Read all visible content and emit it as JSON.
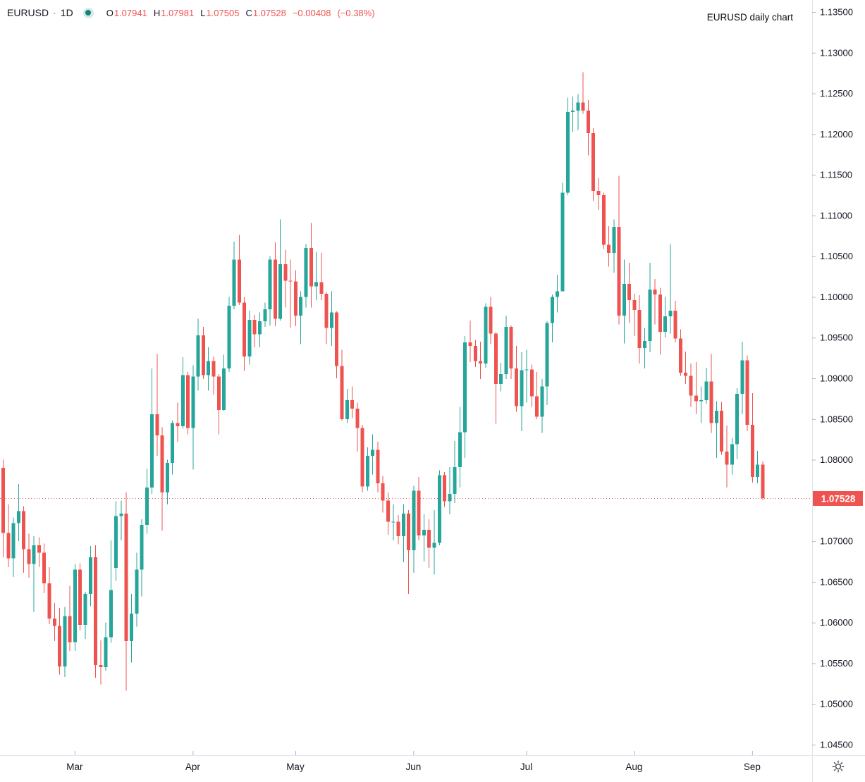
{
  "header": {
    "symbol": "EURUSD",
    "separator": "·",
    "interval": "1D",
    "status_dot_color": "#11847a",
    "ohlc": {
      "open_label": "O",
      "open": "1.07941",
      "high_label": "H",
      "high": "1.07981",
      "low_label": "L",
      "low": "1.07505",
      "close_label": "C",
      "close": "1.07528",
      "change": "−0.00408",
      "change_percent": "(−0.38%)"
    }
  },
  "chart_label": "EURUSD daily chart",
  "price_axis": {
    "labels": [
      "1.13500",
      "1.13000",
      "1.12500",
      "1.12000",
      "1.11500",
      "1.11000",
      "1.10500",
      "1.10000",
      "1.09500",
      "1.09000",
      "1.08500",
      "1.08000",
      "1.07000",
      "1.06500",
      "1.06000",
      "1.05500",
      "1.05000",
      "1.04500"
    ],
    "last_price_badge": {
      "text": "1.07528",
      "background": "#ef5350",
      "text_color": "#ffffff"
    }
  },
  "time_axis": {
    "labels": [
      "Mar",
      "Apr",
      "May",
      "Jun",
      "Jul",
      "Aug",
      "Sep"
    ]
  },
  "colors": {
    "up": "#26a69a",
    "down": "#ef5350",
    "axis_line": "#e0e3eb",
    "tick": "#b2b5be",
    "axis_text": "#131722",
    "icon": "#4a4e59"
  },
  "chart_data": {
    "type": "candlestick",
    "title": "EURUSD daily chart",
    "symbol": "EURUSD",
    "interval": "1D",
    "up_color": "#26a69a",
    "down_color": "#ef5350",
    "last_price": 1.07528,
    "last_price_line_color": "#ef5350",
    "y_axis": {
      "side": "right",
      "min": 1.045,
      "max": 1.135,
      "tick_step": 0.005
    },
    "x_axis": {
      "month_ticks": [
        {
          "label": "Mar",
          "candle_index": 14
        },
        {
          "label": "Apr",
          "candle_index": 37
        },
        {
          "label": "May",
          "candle_index": 57
        },
        {
          "label": "Jun",
          "candle_index": 80
        },
        {
          "label": "Jul",
          "candle_index": 102
        },
        {
          "label": "Aug",
          "candle_index": 123
        },
        {
          "label": "Sep",
          "candle_index": 146
        }
      ]
    },
    "candles": [
      [
        1.079,
        1.08,
        1.068,
        1.071
      ],
      [
        1.071,
        1.0745,
        1.0668,
        1.0679
      ],
      [
        1.0679,
        1.0729,
        1.0656,
        1.0722
      ],
      [
        1.0722,
        1.077,
        1.07,
        1.0737
      ],
      [
        1.0737,
        1.0743,
        1.0661,
        1.069
      ],
      [
        1.069,
        1.0709,
        1.0655,
        1.0672
      ],
      [
        1.0672,
        1.0706,
        1.0613,
        1.0695
      ],
      [
        1.0695,
        1.0705,
        1.0668,
        1.0686
      ],
      [
        1.0686,
        1.0697,
        1.0636,
        1.0648
      ],
      [
        1.0648,
        1.0668,
        1.0598,
        1.0605
      ],
      [
        1.0605,
        1.0624,
        1.0577,
        1.0596
      ],
      [
        1.0596,
        1.0618,
        1.0536,
        1.0546
      ],
      [
        1.0546,
        1.0619,
        1.0533,
        1.0608
      ],
      [
        1.0608,
        1.0645,
        1.0565,
        1.0576
      ],
      [
        1.0576,
        1.0672,
        1.0565,
        1.0665
      ],
      [
        1.0665,
        1.0673,
        1.059,
        1.0597
      ],
      [
        1.0597,
        1.0638,
        1.058,
        1.0635
      ],
      [
        1.0635,
        1.0694,
        1.062,
        1.068
      ],
      [
        1.068,
        1.0695,
        1.0532,
        1.0548
      ],
      [
        1.0548,
        1.0578,
        1.0524,
        1.0545
      ],
      [
        1.0545,
        1.06,
        1.0541,
        1.0582
      ],
      [
        1.0582,
        1.0701,
        1.0575,
        1.064
      ],
      [
        1.0667,
        1.0749,
        1.0651,
        1.0731
      ],
      [
        1.0731,
        1.075,
        1.0701,
        1.0734
      ],
      [
        1.0734,
        1.076,
        1.0516,
        1.0577
      ],
      [
        1.0577,
        1.0635,
        1.0551,
        1.0611
      ],
      [
        1.0611,
        1.0686,
        1.0595,
        1.0665
      ],
      [
        1.0665,
        1.0727,
        1.0632,
        1.072
      ],
      [
        1.072,
        1.0789,
        1.0709,
        1.0766
      ],
      [
        1.0766,
        1.0912,
        1.0758,
        1.0856
      ],
      [
        1.0856,
        1.093,
        1.0805,
        1.083
      ],
      [
        1.083,
        1.084,
        1.0713,
        1.076
      ],
      [
        1.076,
        1.08,
        1.0745,
        1.0796
      ],
      [
        1.0796,
        1.0848,
        1.0782,
        1.0845
      ],
      [
        1.0845,
        1.087,
        1.0822,
        1.0841
      ],
      [
        1.0841,
        1.0926,
        1.0838,
        1.0904
      ],
      [
        1.0904,
        1.0908,
        1.0831,
        1.0839
      ],
      [
        1.0839,
        1.0916,
        1.0788,
        1.0902
      ],
      [
        1.0902,
        1.0973,
        1.0885,
        1.0953
      ],
      [
        1.0953,
        1.0963,
        1.0899,
        1.0904
      ],
      [
        1.0904,
        1.0938,
        1.0885,
        1.0921
      ],
      [
        1.0921,
        1.0927,
        1.088,
        1.0902
      ],
      [
        1.0902,
        1.0905,
        1.0831,
        1.0861
      ],
      [
        1.0861,
        1.0929,
        1.086,
        1.0912
      ],
      [
        1.0912,
        1.1,
        1.0908,
        1.0989
      ],
      [
        1.0989,
        1.1068,
        1.0985,
        1.1046
      ],
      [
        1.1046,
        1.1076,
        1.099,
        1.0993
      ],
      [
        1.0993,
        1.1,
        1.0909,
        1.0927
      ],
      [
        1.0927,
        1.0983,
        1.0917,
        1.0972
      ],
      [
        1.0972,
        1.0978,
        1.0938,
        1.0954
      ],
      [
        1.0954,
        1.0981,
        1.0938,
        1.097
      ],
      [
        1.097,
        1.0993,
        1.0963,
        1.0985
      ],
      [
        1.0985,
        1.105,
        1.0965,
        1.1046
      ],
      [
        1.1046,
        1.1067,
        1.0964,
        1.0973
      ],
      [
        1.0973,
        1.1095,
        1.0971,
        1.104
      ],
      [
        1.104,
        1.1058,
        1.0987,
        1.102
      ],
      [
        1.102,
        1.1046,
        1.0962,
        1.1019
      ],
      [
        1.1019,
        1.1033,
        1.0964,
        1.0977
      ],
      [
        1.0977,
        1.1007,
        1.0942,
        1.1
      ],
      [
        1.1,
        1.1065,
        1.0987,
        1.106
      ],
      [
        1.106,
        1.1091,
        1.0987,
        1.1013
      ],
      [
        1.1013,
        1.1055,
        1.0996,
        1.1018
      ],
      [
        1.1018,
        1.1054,
        1.0996,
        1.1004
      ],
      [
        1.1004,
        1.1006,
        1.0942,
        1.0962
      ],
      [
        1.0962,
        1.1007,
        1.094,
        1.0981
      ],
      [
        1.0981,
        1.0982,
        1.09,
        1.0915
      ],
      [
        1.0915,
        1.0935,
        1.0848,
        1.085
      ],
      [
        1.085,
        1.0887,
        1.0845,
        1.0873
      ],
      [
        1.0873,
        1.089,
        1.0851,
        1.0863
      ],
      [
        1.0863,
        1.087,
        1.081,
        1.0839
      ],
      [
        1.0839,
        1.0843,
        1.076,
        1.0767
      ],
      [
        1.0767,
        1.0815,
        1.0762,
        1.0805
      ],
      [
        1.0805,
        1.0831,
        1.0782,
        1.0812
      ],
      [
        1.0812,
        1.0822,
        1.076,
        1.0771
      ],
      [
        1.0771,
        1.078,
        1.0735,
        1.075
      ],
      [
        1.075,
        1.076,
        1.0708,
        1.0724
      ],
      [
        1.0724,
        1.0745,
        1.0701,
        1.0724
      ],
      [
        1.0724,
        1.0732,
        1.0696,
        1.0706
      ],
      [
        1.0706,
        1.0745,
        1.0674,
        1.0734
      ],
      [
        1.0734,
        1.0738,
        1.0635,
        1.0689
      ],
      [
        1.0689,
        1.0768,
        1.0661,
        1.0762
      ],
      [
        1.0762,
        1.0779,
        1.0701,
        1.0707
      ],
      [
        1.0707,
        1.0733,
        1.0675,
        1.0714
      ],
      [
        1.0714,
        1.0727,
        1.0667,
        1.0692
      ],
      [
        1.0692,
        1.0738,
        1.0659,
        1.0698
      ],
      [
        1.0698,
        1.0787,
        1.0695,
        1.0781
      ],
      [
        1.0781,
        1.0785,
        1.0742,
        1.0749
      ],
      [
        1.0749,
        1.0791,
        1.0733,
        1.0758
      ],
      [
        1.0758,
        1.0823,
        1.0747,
        1.0791
      ],
      [
        1.0791,
        1.0865,
        1.0766,
        1.0834
      ],
      [
        1.0834,
        1.0952,
        1.0802,
        1.0944
      ],
      [
        1.0944,
        1.0971,
        1.092,
        1.094
      ],
      [
        1.094,
        1.0947,
        1.0914,
        1.0921
      ],
      [
        1.0921,
        1.0945,
        1.0899,
        1.0918
      ],
      [
        1.0918,
        1.0992,
        1.0913,
        1.0988
      ],
      [
        1.0988,
        1.1,
        1.0942,
        1.0955
      ],
      [
        1.0955,
        1.0957,
        1.0844,
        1.0893
      ],
      [
        1.0893,
        1.0919,
        1.0884,
        1.0905
      ],
      [
        1.0905,
        1.0977,
        1.0899,
        1.0963
      ],
      [
        1.0963,
        1.0965,
        1.0899,
        1.0912
      ],
      [
        1.0912,
        1.094,
        1.0859,
        1.0866
      ],
      [
        1.0866,
        1.0932,
        1.0835,
        1.091
      ],
      [
        1.091,
        1.0935,
        1.087,
        1.0911
      ],
      [
        1.0911,
        1.0917,
        1.0865,
        1.0878
      ],
      [
        1.0878,
        1.0908,
        1.085,
        1.0853
      ],
      [
        1.0853,
        1.0899,
        1.0833,
        1.089
      ],
      [
        1.089,
        1.097,
        1.0867,
        1.0968
      ],
      [
        1.0968,
        1.1003,
        1.0944,
        1.1
      ],
      [
        1.1,
        1.1027,
        1.0981,
        1.1007
      ],
      [
        1.1007,
        1.114,
        1.1007,
        1.1128
      ],
      [
        1.1128,
        1.1245,
        1.1125,
        1.1227
      ],
      [
        1.1227,
        1.1246,
        1.1203,
        1.1229
      ],
      [
        1.1229,
        1.1249,
        1.1205,
        1.1239
      ],
      [
        1.1239,
        1.1276,
        1.1225,
        1.1229
      ],
      [
        1.1229,
        1.1242,
        1.1174,
        1.1201
      ],
      [
        1.1201,
        1.1207,
        1.1118,
        1.113
      ],
      [
        1.113,
        1.1146,
        1.1107,
        1.1125
      ],
      [
        1.1125,
        1.1128,
        1.1059,
        1.1064
      ],
      [
        1.1064,
        1.1087,
        1.1037,
        1.1054
      ],
      [
        1.1054,
        1.1095,
        1.103,
        1.1086
      ],
      [
        1.1086,
        1.1149,
        1.0966,
        1.0977
      ],
      [
        1.0977,
        1.1046,
        1.0943,
        1.1016
      ],
      [
        1.1016,
        1.1042,
        1.0968,
        1.0996
      ],
      [
        1.0996,
        1.1004,
        1.0952,
        1.0984
      ],
      [
        1.0984,
        1.1002,
        1.0918,
        1.0937
      ],
      [
        1.0937,
        1.0962,
        1.0912,
        1.0946
      ],
      [
        1.0946,
        1.1042,
        1.0932,
        1.1009
      ],
      [
        1.1009,
        1.1022,
        1.0966,
        1.1003
      ],
      [
        1.1003,
        1.1011,
        1.0929,
        1.0957
      ],
      [
        1.0957,
        1.1,
        1.095,
        1.0976
      ],
      [
        1.0976,
        1.1065,
        1.0955,
        1.0983
      ],
      [
        1.0983,
        1.0995,
        1.0944,
        1.0949
      ],
      [
        1.0949,
        1.096,
        1.0903,
        1.0907
      ],
      [
        1.0907,
        1.0933,
        1.0893,
        1.0903
      ],
      [
        1.0903,
        1.0918,
        1.0865,
        1.0879
      ],
      [
        1.0879,
        1.092,
        1.0856,
        1.0872
      ],
      [
        1.0872,
        1.089,
        1.0845,
        1.0873
      ],
      [
        1.0873,
        1.0913,
        1.0869,
        1.0896
      ],
      [
        1.0896,
        1.093,
        1.0833,
        1.0845
      ],
      [
        1.0845,
        1.0872,
        1.0802,
        1.086
      ],
      [
        1.086,
        1.0871,
        1.0806,
        1.081
      ],
      [
        1.081,
        1.0842,
        1.0766,
        1.0794
      ],
      [
        1.0794,
        1.0827,
        1.0782,
        1.0819
      ],
      [
        1.0819,
        1.0888,
        1.0801,
        1.0881
      ],
      [
        1.0881,
        1.0945,
        1.0856,
        1.0922
      ],
      [
        1.0922,
        1.0928,
        1.0835,
        1.0843
      ],
      [
        1.0843,
        1.0882,
        1.0772,
        1.0779
      ],
      [
        1.0779,
        1.0811,
        1.0771,
        1.0794
      ],
      [
        1.07941,
        1.07981,
        1.07505,
        1.07528
      ]
    ]
  }
}
